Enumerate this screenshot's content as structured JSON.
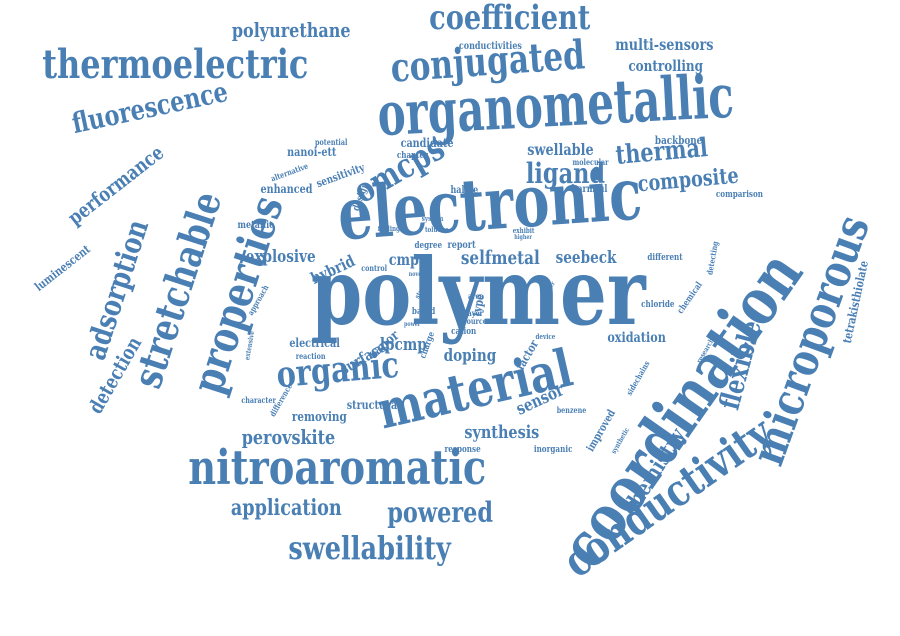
{
  "cloud": {
    "color": "#4a7fb4",
    "words": [
      "polymer",
      "electronic",
      "organometallic",
      "coordination",
      "microporous",
      "conductivity",
      "material",
      "nitroaromatic",
      "properties",
      "stretchable",
      "thermoelectric",
      "conjugated",
      "coefficient",
      "organic",
      "adsorption",
      "fluorescence",
      "swellability",
      "powered",
      "omcps",
      "flexible",
      "ligand",
      "thermal",
      "composite",
      "polyurethane",
      "performance",
      "detection",
      "application",
      "perovskite",
      "chemistry",
      "synthesis",
      "explosive",
      "selfmetal",
      "seebeck",
      "lpcmp",
      "doping",
      "surface",
      "vapor",
      "sensor",
      "hybrid",
      "multi-sensors",
      "controlling",
      "tetrakisthiolate",
      "luminescent",
      "oxidation",
      "cmps",
      "swellable",
      "structural",
      "removing",
      "electrical",
      "enhanced",
      "sensitivity",
      "design",
      "candidate",
      "backbone",
      "metallic",
      "conductivities",
      "comparison",
      "chloride",
      "different",
      "halide",
      "harmful",
      "chapter",
      "molecular",
      "response",
      "inorganic",
      "improved",
      "type",
      "chemical",
      "sidechains",
      "detecting",
      "cation",
      "report",
      "degree",
      "toluene",
      "system",
      "finding",
      "potential",
      "alternative",
      "approach",
      "extensive",
      "character",
      "reaction",
      "difference",
      "control",
      "factor",
      "study",
      "area",
      "novel",
      "based",
      "charge",
      "benzene",
      "higher",
      "exhibit",
      "center",
      "source",
      "layer",
      "series",
      "power",
      "device",
      "research",
      "synthetic",
      "nanoi-ett"
    ]
  }
}
